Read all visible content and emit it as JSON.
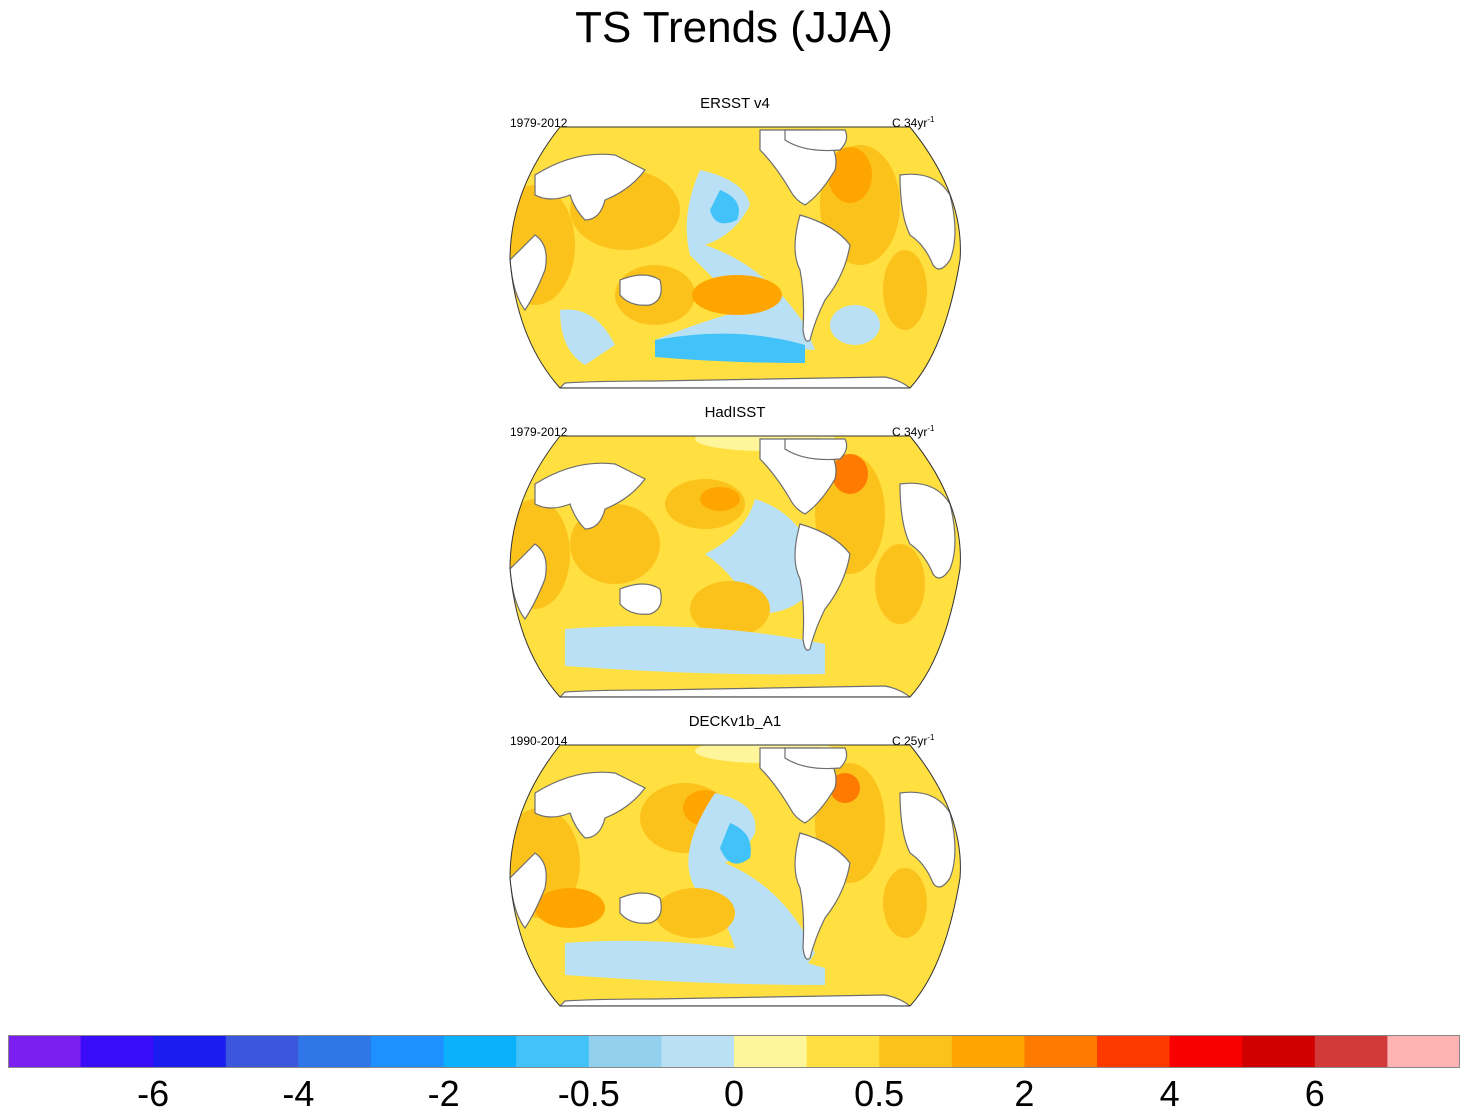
{
  "title": "TS Trends (JJA)",
  "panels": [
    {
      "name": "ERSST v4",
      "period": "1979-2012",
      "units_prefix": "C 34yr",
      "units_exp": "-1"
    },
    {
      "name": "HadISST",
      "period": "1979-2012",
      "units_prefix": "C 34yr",
      "units_exp": "-1"
    },
    {
      "name": "DECKv1b_A1",
      "period": "1990-2014",
      "units_prefix": "C 25yr",
      "units_exp": "-1"
    }
  ],
  "colorbar": {
    "colors": [
      "#7b1ff0",
      "#3a0cf8",
      "#1a1cf0",
      "#3b57dc",
      "#2f77e8",
      "#1e90ff",
      "#0bb2fb",
      "#41c2f8",
      "#93d0ee",
      "#b9e0f4",
      "#fff59a",
      "#ffe040",
      "#fcc21c",
      "#ffa500",
      "#ff7a00",
      "#ff3a00",
      "#f80000",
      "#d00000",
      "#d23a3a",
      "#ffb3b3"
    ],
    "labels": [
      "-6",
      "-4",
      "-2",
      "-0.5",
      "0",
      "0.5",
      "2",
      "4",
      "6"
    ],
    "label_boundaries": [
      2,
      4,
      6,
      8,
      10,
      12,
      14,
      16,
      18
    ]
  },
  "palette": {
    "land": "#ffffff",
    "coast": "#6e6e6e",
    "warm_low": "#fff59a",
    "warm_mid": "#ffe040",
    "warm": "#fcc21c",
    "warm_high": "#ffa500",
    "hot": "#ff7a00",
    "cool_low": "#b9e0f4",
    "cool_mid": "#93d0ee",
    "cool": "#41c2f8"
  }
}
